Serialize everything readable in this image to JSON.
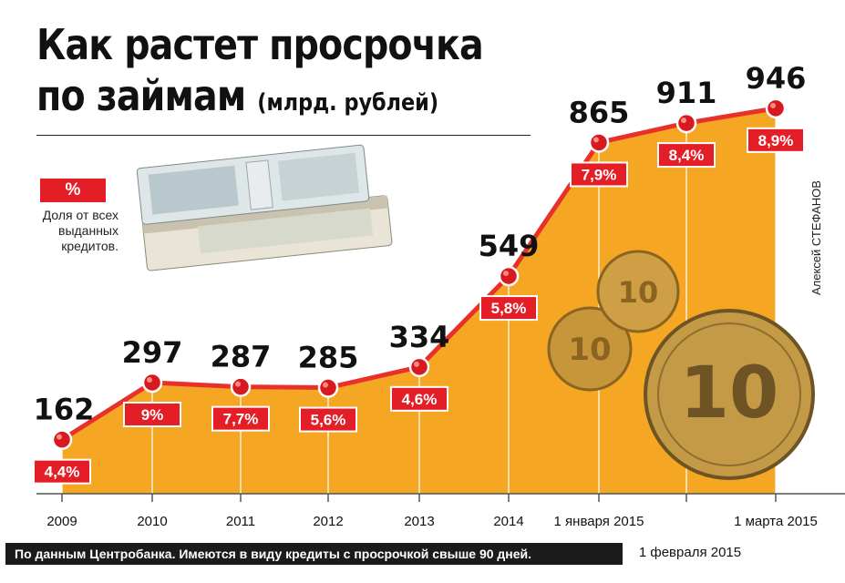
{
  "title_line1": "Как растет просрочка",
  "title_line2": "по займам",
  "title_units": "(млрд. рублей)",
  "legend": {
    "badge": "%",
    "text": "Доля от всех выданных кредитов."
  },
  "author": "Алексей СТЕФАНОВ",
  "source_note": "По данным Центробанка. Имеются в виду кредиты с просрочкой свыше 90 дней.",
  "colors": {
    "area": "#f5a623",
    "line": "#e8312b",
    "marker": "#d71920",
    "badge": "#e41e26"
  },
  "chart_data": {
    "type": "area",
    "title": "Как растет просрочка по займам (млрд. рублей)",
    "categories": [
      "2009",
      "2010",
      "2011",
      "2012",
      "2013",
      "2014",
      "1 января 2015",
      "1 февраля 2015",
      "1 марта 2015"
    ],
    "series": [
      {
        "values": [
          162,
          297,
          287,
          285,
          334,
          549,
          865,
          911,
          946
        ]
      },
      {
        "values": [
          "4,4%",
          "9%",
          "7,7%",
          "5,6%",
          "4,6%",
          "5,8%",
          "7,9%",
          "8,4%",
          "8,9%"
        ]
      }
    ],
    "legend": "left"
  }
}
